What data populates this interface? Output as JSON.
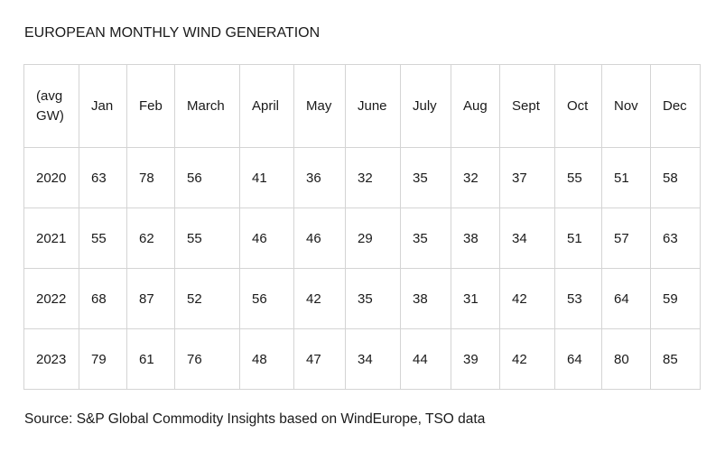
{
  "title": "EUROPEAN MONTHLY WIND GENERATION",
  "table": {
    "headers": [
      "(avg GW)",
      "Jan",
      "Feb",
      "March",
      "April",
      "May",
      "June",
      "July",
      "Aug",
      "Sept",
      "Oct",
      "Nov",
      "Dec"
    ],
    "rows": [
      [
        "2020",
        "63",
        "78",
        "56",
        "41",
        "36",
        "32",
        "35",
        "32",
        "37",
        "55",
        "51",
        "58"
      ],
      [
        "2021",
        "55",
        "62",
        "55",
        "46",
        "46",
        "29",
        "35",
        "38",
        "34",
        "51",
        "57",
        "63"
      ],
      [
        "2022",
        "68",
        "87",
        "52",
        "56",
        "42",
        "35",
        "38",
        "31",
        "42",
        "53",
        "64",
        "59"
      ],
      [
        "2023",
        "79",
        "61",
        "76",
        "48",
        "47",
        "34",
        "44",
        "39",
        "42",
        "64",
        "80",
        "85"
      ]
    ]
  },
  "source": "Source: S&P Global Commodity Insights based on WindEurope, TSO data",
  "chart_data": {
    "type": "table",
    "title": "EUROPEAN MONTHLY WIND GENERATION",
    "unit": "(avg GW)",
    "categories": [
      "Jan",
      "Feb",
      "March",
      "April",
      "May",
      "June",
      "July",
      "Aug",
      "Sept",
      "Oct",
      "Nov",
      "Dec"
    ],
    "series": [
      {
        "name": "2020",
        "values": [
          63,
          78,
          56,
          41,
          36,
          32,
          35,
          32,
          37,
          55,
          51,
          58
        ]
      },
      {
        "name": "2021",
        "values": [
          55,
          62,
          55,
          46,
          46,
          29,
          35,
          38,
          34,
          51,
          57,
          63
        ]
      },
      {
        "name": "2022",
        "values": [
          68,
          87,
          52,
          56,
          42,
          35,
          38,
          31,
          42,
          53,
          64,
          59
        ]
      },
      {
        "name": "2023",
        "values": [
          79,
          61,
          76,
          48,
          47,
          34,
          44,
          39,
          42,
          64,
          80,
          85
        ]
      }
    ]
  }
}
